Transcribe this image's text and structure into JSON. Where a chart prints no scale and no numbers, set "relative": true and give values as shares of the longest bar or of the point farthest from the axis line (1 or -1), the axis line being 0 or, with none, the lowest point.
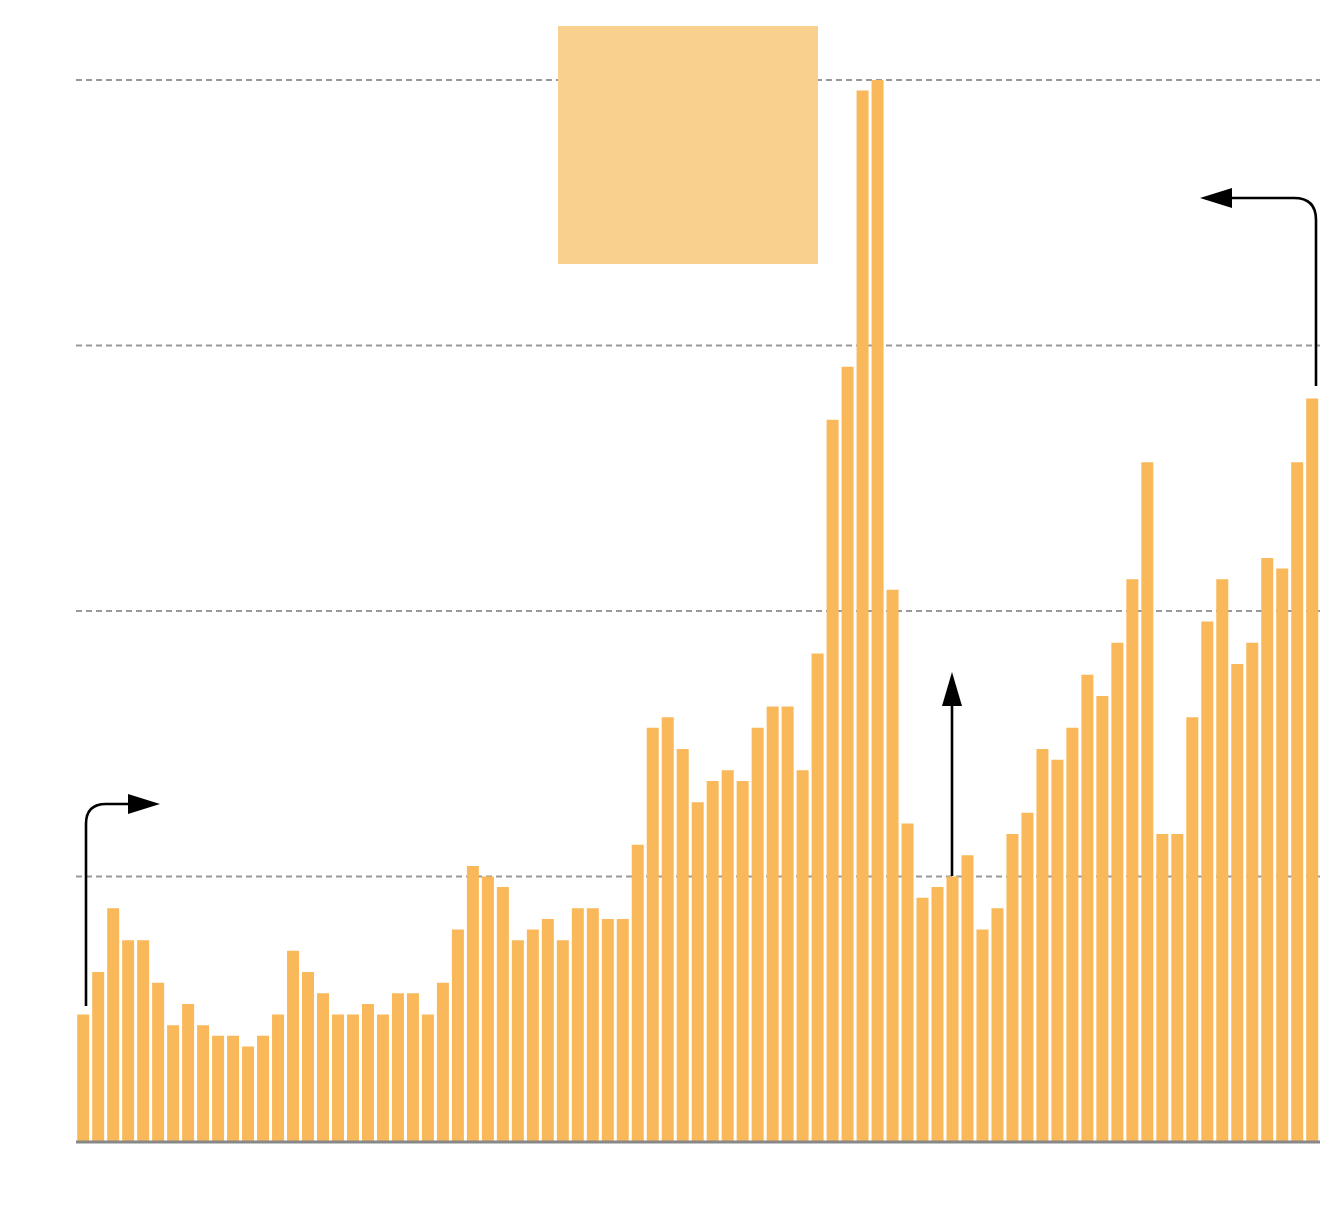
{
  "chart_data": {
    "type": "bar",
    "relative": true,
    "grid": "y",
    "color": "#f9b85a",
    "categories": [
      null,
      null,
      null,
      null,
      null,
      null,
      null,
      null,
      null,
      null,
      null,
      null,
      null,
      null,
      null,
      null,
      null,
      null,
      null,
      null,
      null,
      null,
      null,
      null,
      null,
      null,
      null,
      null,
      null,
      null,
      null,
      null,
      null,
      null,
      null,
      null,
      null,
      null,
      null,
      null,
      null,
      null,
      null,
      null,
      null,
      null,
      null,
      null,
      null,
      null,
      null,
      null,
      null,
      null,
      null,
      null,
      null,
      null,
      null,
      null,
      null,
      null,
      null,
      null,
      null,
      null,
      null,
      null,
      null,
      null,
      null,
      null,
      null,
      null,
      null,
      null,
      null,
      null,
      null,
      null,
      null,
      null,
      null
    ],
    "values": [
      0.12,
      0.16,
      0.22,
      0.19,
      0.19,
      0.15,
      0.11,
      0.13,
      0.11,
      0.1,
      0.1,
      0.09,
      0.1,
      0.12,
      0.18,
      0.16,
      0.14,
      0.12,
      0.12,
      0.13,
      0.12,
      0.14,
      0.14,
      0.12,
      0.15,
      0.2,
      0.26,
      0.25,
      0.24,
      0.19,
      0.2,
      0.21,
      0.19,
      0.22,
      0.22,
      0.21,
      0.21,
      0.28,
      0.39,
      0.4,
      0.37,
      0.32,
      0.34,
      0.35,
      0.34,
      0.39,
      0.41,
      0.41,
      0.35,
      0.46,
      0.68,
      0.73,
      0.99,
      1,
      0.52,
      0.3,
      0.23,
      0.24,
      0.25,
      0.27,
      0.2,
      0.22,
      0.29,
      0.31,
      0.37,
      0.36,
      0.39,
      0.44,
      0.42,
      0.47,
      0.53,
      0.64,
      0.29,
      0.29,
      0.4,
      0.49,
      0.53,
      0.45,
      0.47,
      0.55,
      0.54,
      0.64,
      0.7
    ]
  }
}
